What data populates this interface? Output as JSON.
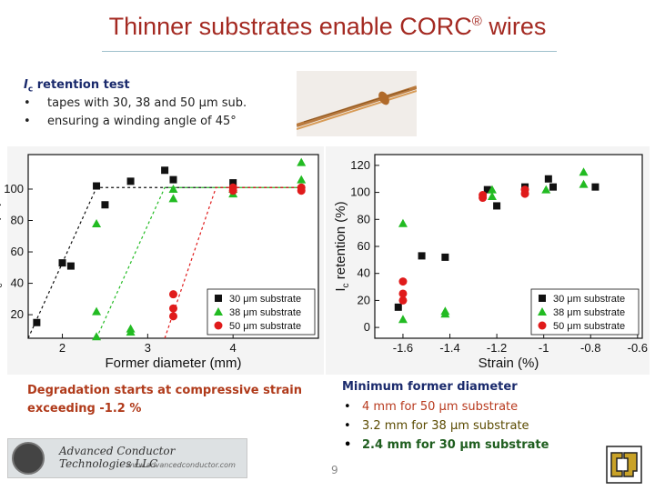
{
  "slide": {
    "title": "Thinner substrates enable CORC",
    "title_reg": "®",
    "title_tail": " wires",
    "retention_title_ic": "I",
    "retention_title_sub": "c",
    "retention_title_rest": " retention test",
    "bullet_glyph": "•",
    "retention_bullets": [
      "tapes with 30, 38 and 50 μm sub.",
      "ensuring a winding angle of 45°"
    ],
    "degradation_line1": "Degradation starts at compressive strain",
    "degradation_line2": "exceeding -1.2 %",
    "min_title": "Minimum former diameter",
    "min_items": [
      {
        "text": "4 mm for 50 μm substrate",
        "color": "#b83a1e"
      },
      {
        "text": "3.2 mm for 38 μm substrate",
        "color": "#5a4a00"
      },
      {
        "text": "2.4 mm for 30 μm substrate",
        "color": "#1f5e1f"
      }
    ],
    "logo_name": "Advanced Conductor Technologies LLC",
    "logo_url": "www.advancedconductor.com",
    "page_number": "9"
  },
  "chart_data": [
    {
      "type": "scatter",
      "xlabel": "Former diameter (mm)",
      "ylabel": "I",
      "ylabel_sub": "c",
      "ylabel_tail": " retention (%)",
      "xticks": [
        2,
        3,
        4
      ],
      "yticks": [
        20,
        40,
        60,
        80,
        100
      ],
      "xlim": [
        1.6,
        5.0
      ],
      "ylim": [
        5,
        122
      ],
      "legend_position": "bottom-right",
      "series": [
        {
          "name": "30 μm substrate",
          "color": "#111111",
          "marker": "square",
          "points": [
            [
              1.7,
              15
            ],
            [
              2.0,
              53
            ],
            [
              2.1,
              51
            ],
            [
              2.4,
              102
            ],
            [
              2.5,
              90
            ],
            [
              2.8,
              105
            ],
            [
              3.2,
              112
            ],
            [
              3.3,
              106
            ],
            [
              4.0,
              104
            ]
          ]
        },
        {
          "name": "38 μm substrate",
          "color": "#22bb22",
          "marker": "triangle",
          "points": [
            [
              2.4,
              78
            ],
            [
              2.4,
              22
            ],
            [
              2.4,
              6
            ],
            [
              2.8,
              11
            ],
            [
              2.8,
              9
            ],
            [
              3.3,
              100
            ],
            [
              3.3,
              94
            ],
            [
              4.0,
              100
            ],
            [
              4.0,
              97
            ],
            [
              4.8,
              117
            ],
            [
              4.8,
              106
            ]
          ]
        },
        {
          "name": "50 μm substrate",
          "color": "#e01b1b",
          "marker": "circle",
          "points": [
            [
              3.3,
              33
            ],
            [
              3.3,
              24
            ],
            [
              3.3,
              19
            ],
            [
              4.0,
              101
            ],
            [
              4.0,
              99
            ],
            [
              4.8,
              101
            ],
            [
              4.8,
              99
            ]
          ]
        }
      ],
      "fit_lines": [
        {
          "color": "#111111",
          "points": [
            [
              1.6,
              5
            ],
            [
              2.4,
              101
            ],
            [
              4.8,
              101
            ]
          ]
        },
        {
          "color": "#22bb22",
          "points": [
            [
              2.4,
              5
            ],
            [
              3.2,
              101
            ],
            [
              4.8,
              101
            ]
          ]
        },
        {
          "color": "#e01b1b",
          "points": [
            [
              3.2,
              5
            ],
            [
              3.8,
              101
            ],
            [
              4.8,
              101
            ]
          ]
        }
      ]
    },
    {
      "type": "scatter",
      "xlabel": "Strain (%)",
      "ylabel": "I",
      "ylabel_sub": "c",
      "ylabel_tail": " retention (%)",
      "xticks": [
        -1.6,
        -1.4,
        -1.2,
        -1.0,
        -0.8,
        -0.6
      ],
      "ytick_labels": [
        "0",
        "20",
        "40",
        "60",
        "80",
        "100",
        "120"
      ],
      "yticks": [
        0,
        20,
        40,
        60,
        80,
        100,
        120
      ],
      "xlim": [
        -1.72,
        -0.58
      ],
      "ylim": [
        -8,
        128
      ],
      "legend_position": "bottom-right",
      "series": [
        {
          "name": "30 μm substrate",
          "color": "#111111",
          "marker": "square",
          "points": [
            [
              -1.62,
              15
            ],
            [
              -1.52,
              53
            ],
            [
              -1.42,
              52
            ],
            [
              -1.24,
              102
            ],
            [
              -1.2,
              90
            ],
            [
              -1.08,
              104
            ],
            [
              -0.98,
              110
            ],
            [
              -0.96,
              104
            ],
            [
              -0.78,
              104
            ]
          ]
        },
        {
          "name": "38 μm substrate",
          "color": "#22bb22",
          "marker": "triangle",
          "points": [
            [
              -1.6,
              77
            ],
            [
              -1.6,
              6
            ],
            [
              -1.42,
              12
            ],
            [
              -1.42,
              10
            ],
            [
              -1.22,
              102
            ],
            [
              -1.22,
              97
            ],
            [
              -0.99,
              102
            ],
            [
              -0.83,
              115
            ],
            [
              -0.83,
              106
            ]
          ]
        },
        {
          "name": "50 μm substrate",
          "color": "#e01b1b",
          "marker": "circle",
          "points": [
            [
              -1.6,
              34
            ],
            [
              -1.6,
              25
            ],
            [
              -1.6,
              20
            ],
            [
              -1.26,
              98
            ],
            [
              -1.26,
              96
            ],
            [
              -1.08,
              102
            ],
            [
              -1.08,
              99
            ]
          ]
        }
      ]
    }
  ]
}
